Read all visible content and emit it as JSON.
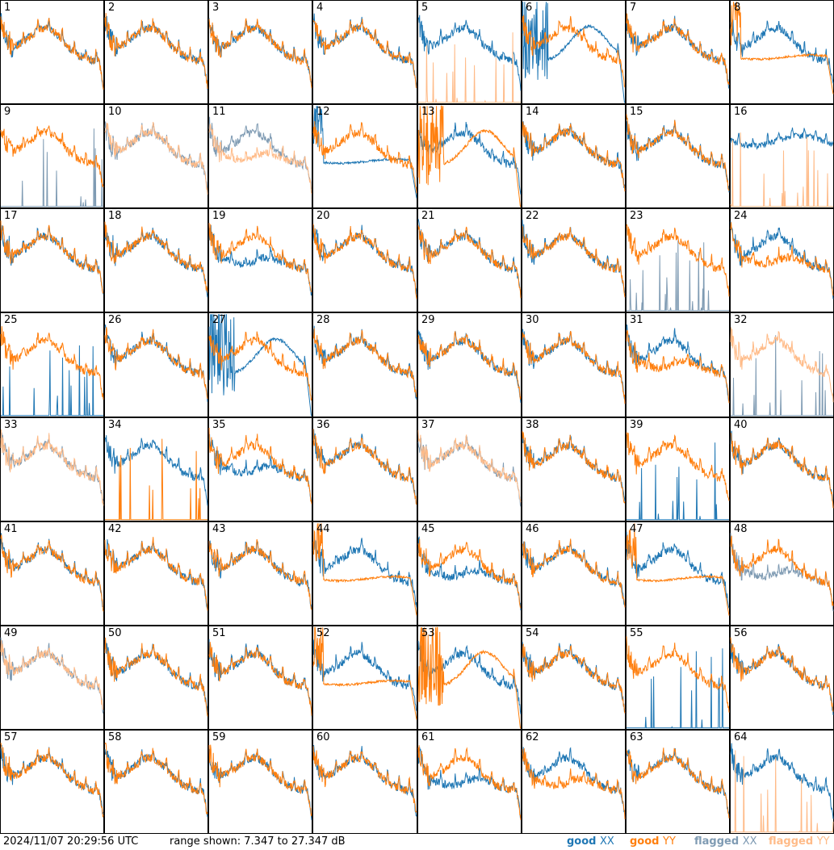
{
  "footer": {
    "timestamp": "2024/11/07 20:29:56 UTC",
    "range_text": "range shown: 7.347 to 27.347 dB"
  },
  "legend": [
    {
      "word": "good",
      "pol": "XX",
      "color": "#1f77b4"
    },
    {
      "word": "good",
      "pol": "YY",
      "color": "#ff7f0e"
    },
    {
      "word": "flagged",
      "pol": "XX",
      "color": "#7f9bb3"
    },
    {
      "word": "flagged",
      "pol": "YY",
      "color": "#ffbb88"
    }
  ],
  "chart_data": {
    "type": "line",
    "layout": "8x8 small multiples",
    "ylim_db": [
      7.347,
      27.347
    ],
    "colors": {
      "good_xx": "#1f77b4",
      "good_yy": "#ff7f0e",
      "flagged_xx": "#7f9bb3",
      "flagged_yy": "#ffbb88"
    },
    "panels": [
      {
        "n": 1,
        "xx": "good",
        "yy": "good",
        "xx_shape": "normal",
        "yy_shape": "normal"
      },
      {
        "n": 2,
        "xx": "good",
        "yy": "good",
        "xx_shape": "normal",
        "yy_shape": "normal"
      },
      {
        "n": 3,
        "xx": "good",
        "yy": "good",
        "xx_shape": "normal",
        "yy_shape": "normal"
      },
      {
        "n": 4,
        "xx": "good",
        "yy": "good",
        "xx_shape": "normal",
        "yy_shape": "normal"
      },
      {
        "n": 5,
        "xx": "good",
        "yy": "flagged",
        "xx_shape": "normal",
        "yy_shape": "spiky_low"
      },
      {
        "n": 6,
        "xx": "good",
        "yy": "good",
        "xx_shape": "hump",
        "yy_shape": "normal"
      },
      {
        "n": 7,
        "xx": "good",
        "yy": "good",
        "xx_shape": "normal",
        "yy_shape": "normal"
      },
      {
        "n": 8,
        "xx": "good",
        "yy": "good",
        "xx_shape": "normal",
        "yy_shape": "smooth"
      },
      {
        "n": 9,
        "xx": "flagged",
        "yy": "good",
        "xx_shape": "spiky_low",
        "yy_shape": "normal"
      },
      {
        "n": 10,
        "xx": "flagged",
        "yy": "flagged",
        "xx_shape": "normal",
        "yy_shape": "normal"
      },
      {
        "n": 11,
        "xx": "flagged",
        "yy": "flagged",
        "xx_shape": "normal",
        "yy_shape": "dip"
      },
      {
        "n": 12,
        "xx": "good",
        "yy": "good",
        "xx_shape": "smooth",
        "yy_shape": "normal"
      },
      {
        "n": 13,
        "xx": "good",
        "yy": "good",
        "xx_shape": "normal",
        "yy_shape": "hump"
      },
      {
        "n": 14,
        "xx": "good",
        "yy": "good",
        "xx_shape": "normal",
        "yy_shape": "normal"
      },
      {
        "n": 15,
        "xx": "good",
        "yy": "good",
        "xx_shape": "normal",
        "yy_shape": "normal"
      },
      {
        "n": 16,
        "xx": "good",
        "yy": "flagged",
        "xx_shape": "flat_high",
        "yy_shape": "spiky_low"
      },
      {
        "n": 17,
        "xx": "good",
        "yy": "good",
        "xx_shape": "normal",
        "yy_shape": "normal"
      },
      {
        "n": 18,
        "xx": "good",
        "yy": "good",
        "xx_shape": "normal",
        "yy_shape": "normal"
      },
      {
        "n": 19,
        "xx": "good",
        "yy": "good",
        "xx_shape": "dip",
        "yy_shape": "normal"
      },
      {
        "n": 20,
        "xx": "good",
        "yy": "good",
        "xx_shape": "normal",
        "yy_shape": "normal"
      },
      {
        "n": 21,
        "xx": "good",
        "yy": "good",
        "xx_shape": "normal",
        "yy_shape": "normal"
      },
      {
        "n": 22,
        "xx": "good",
        "yy": "good",
        "xx_shape": "normal",
        "yy_shape": "normal"
      },
      {
        "n": 23,
        "xx": "flagged",
        "yy": "good",
        "xx_shape": "spiky_low",
        "yy_shape": "normal"
      },
      {
        "n": 24,
        "xx": "good",
        "yy": "good",
        "xx_shape": "normal",
        "yy_shape": "dip"
      },
      {
        "n": 25,
        "xx": "good",
        "yy": "good",
        "xx_shape": "spiky_low",
        "yy_shape": "normal"
      },
      {
        "n": 26,
        "xx": "good",
        "yy": "good",
        "xx_shape": "normal",
        "yy_shape": "normal"
      },
      {
        "n": 27,
        "xx": "good",
        "yy": "good",
        "xx_shape": "hump",
        "yy_shape": "normal"
      },
      {
        "n": 28,
        "xx": "good",
        "yy": "good",
        "xx_shape": "normal",
        "yy_shape": "normal"
      },
      {
        "n": 29,
        "xx": "good",
        "yy": "good",
        "xx_shape": "normal",
        "yy_shape": "normal"
      },
      {
        "n": 30,
        "xx": "good",
        "yy": "good",
        "xx_shape": "normal",
        "yy_shape": "normal"
      },
      {
        "n": 31,
        "xx": "good",
        "yy": "good",
        "xx_shape": "normal",
        "yy_shape": "dip"
      },
      {
        "n": 32,
        "xx": "flagged",
        "yy": "flagged",
        "xx_shape": "spiky_low",
        "yy_shape": "normal"
      },
      {
        "n": 33,
        "xx": "flagged",
        "yy": "flagged",
        "xx_shape": "normal",
        "yy_shape": "normal"
      },
      {
        "n": 34,
        "xx": "good",
        "yy": "good",
        "xx_shape": "normal",
        "yy_shape": "spiky_low"
      },
      {
        "n": 35,
        "xx": "good",
        "yy": "good",
        "xx_shape": "dip",
        "yy_shape": "normal"
      },
      {
        "n": 36,
        "xx": "good",
        "yy": "good",
        "xx_shape": "normal",
        "yy_shape": "normal"
      },
      {
        "n": 37,
        "xx": "flagged",
        "yy": "flagged",
        "xx_shape": "normal",
        "yy_shape": "normal"
      },
      {
        "n": 38,
        "xx": "good",
        "yy": "good",
        "xx_shape": "normal",
        "yy_shape": "normal"
      },
      {
        "n": 39,
        "xx": "good",
        "yy": "good",
        "xx_shape": "spiky_low",
        "yy_shape": "normal"
      },
      {
        "n": 40,
        "xx": "good",
        "yy": "good",
        "xx_shape": "normal",
        "yy_shape": "normal"
      },
      {
        "n": 41,
        "xx": "good",
        "yy": "good",
        "xx_shape": "normal",
        "yy_shape": "normal"
      },
      {
        "n": 42,
        "xx": "good",
        "yy": "good",
        "xx_shape": "normal",
        "yy_shape": "normal"
      },
      {
        "n": 43,
        "xx": "good",
        "yy": "good",
        "xx_shape": "normal",
        "yy_shape": "normal"
      },
      {
        "n": 44,
        "xx": "good",
        "yy": "good",
        "xx_shape": "normal",
        "yy_shape": "smooth"
      },
      {
        "n": 45,
        "xx": "good",
        "yy": "good",
        "xx_shape": "dip",
        "yy_shape": "normal"
      },
      {
        "n": 46,
        "xx": "good",
        "yy": "good",
        "xx_shape": "normal",
        "yy_shape": "normal"
      },
      {
        "n": 47,
        "xx": "good",
        "yy": "good",
        "xx_shape": "normal",
        "yy_shape": "smooth"
      },
      {
        "n": 48,
        "xx": "flagged",
        "yy": "good",
        "xx_shape": "dip",
        "yy_shape": "normal"
      },
      {
        "n": 49,
        "xx": "flagged",
        "yy": "flagged",
        "xx_shape": "normal",
        "yy_shape": "normal"
      },
      {
        "n": 50,
        "xx": "good",
        "yy": "good",
        "xx_shape": "normal",
        "yy_shape": "normal"
      },
      {
        "n": 51,
        "xx": "good",
        "yy": "good",
        "xx_shape": "normal",
        "yy_shape": "normal"
      },
      {
        "n": 52,
        "xx": "good",
        "yy": "good",
        "xx_shape": "normal",
        "yy_shape": "smooth"
      },
      {
        "n": 53,
        "xx": "good",
        "yy": "good",
        "xx_shape": "normal",
        "yy_shape": "hump"
      },
      {
        "n": 54,
        "xx": "good",
        "yy": "good",
        "xx_shape": "normal",
        "yy_shape": "normal"
      },
      {
        "n": 55,
        "xx": "good",
        "yy": "good",
        "xx_shape": "spiky_low",
        "yy_shape": "normal"
      },
      {
        "n": 56,
        "xx": "good",
        "yy": "good",
        "xx_shape": "normal",
        "yy_shape": "normal"
      },
      {
        "n": 57,
        "xx": "good",
        "yy": "good",
        "xx_shape": "normal",
        "yy_shape": "normal"
      },
      {
        "n": 58,
        "xx": "good",
        "yy": "good",
        "xx_shape": "normal",
        "yy_shape": "normal"
      },
      {
        "n": 59,
        "xx": "good",
        "yy": "good",
        "xx_shape": "normal",
        "yy_shape": "normal"
      },
      {
        "n": 60,
        "xx": "good",
        "yy": "good",
        "xx_shape": "normal",
        "yy_shape": "normal"
      },
      {
        "n": 61,
        "xx": "good",
        "yy": "good",
        "xx_shape": "dip",
        "yy_shape": "normal"
      },
      {
        "n": 62,
        "xx": "good",
        "yy": "good",
        "xx_shape": "normal",
        "yy_shape": "dip"
      },
      {
        "n": 63,
        "xx": "good",
        "yy": "good",
        "xx_shape": "normal",
        "yy_shape": "normal"
      },
      {
        "n": 64,
        "xx": "good",
        "yy": "flagged",
        "xx_shape": "normal",
        "yy_shape": "spiky_low"
      }
    ]
  }
}
